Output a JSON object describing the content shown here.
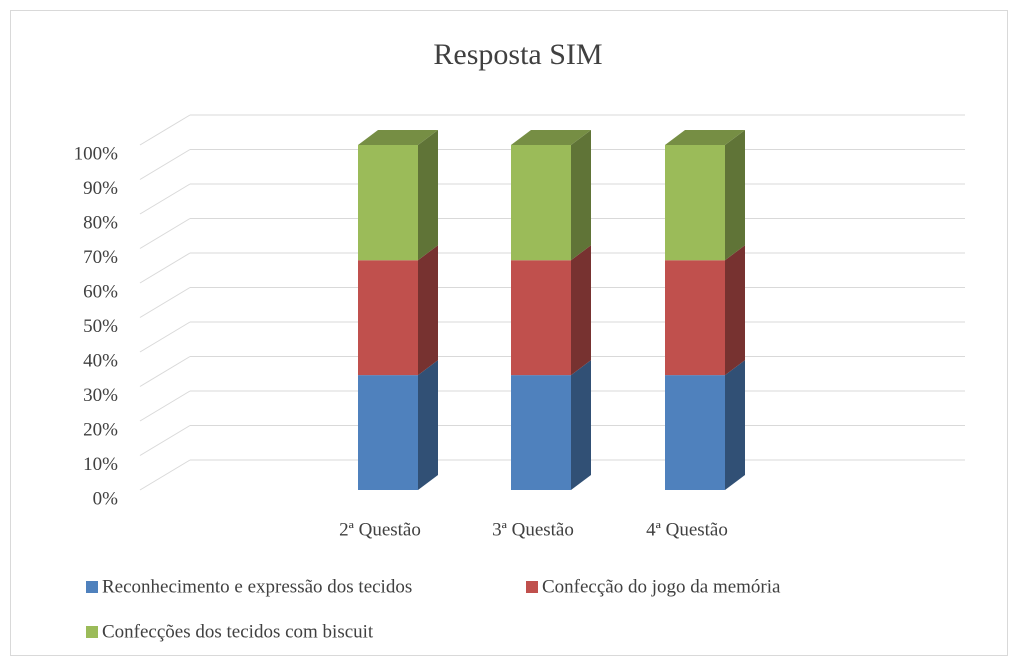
{
  "chart_data": {
    "type": "bar3d_stacked",
    "title": "Resposta SIM",
    "categories": [
      "2ª Questão",
      "3ª Questão",
      "4ª Questão"
    ],
    "series": [
      {
        "name": "Reconhecimento e expressão dos tecidos",
        "color": "#4f81bd",
        "values": [
          33.3,
          33.3,
          33.3
        ]
      },
      {
        "name": "Confecção do jogo da memória",
        "color": "#c0504d",
        "values": [
          33.3,
          33.3,
          33.3
        ]
      },
      {
        "name": "Confecções dos tecidos com biscuit",
        "color": "#9bbb59",
        "values": [
          33.4,
          33.4,
          33.4
        ]
      }
    ],
    "ylim": [
      0,
      100
    ],
    "yticks": [
      {
        "value": 0,
        "label": "0%"
      },
      {
        "value": 10,
        "label": "10%"
      },
      {
        "value": 20,
        "label": "20%"
      },
      {
        "value": 30,
        "label": "30%"
      },
      {
        "value": 40,
        "label": "40%"
      },
      {
        "value": 50,
        "label": "50%"
      },
      {
        "value": 60,
        "label": "60%"
      },
      {
        "value": 70,
        "label": "70%"
      },
      {
        "value": 80,
        "label": "80%"
      },
      {
        "value": 90,
        "label": "90%"
      },
      {
        "value": 100,
        "label": "100%"
      }
    ],
    "grid": true,
    "legend": "bottom"
  }
}
